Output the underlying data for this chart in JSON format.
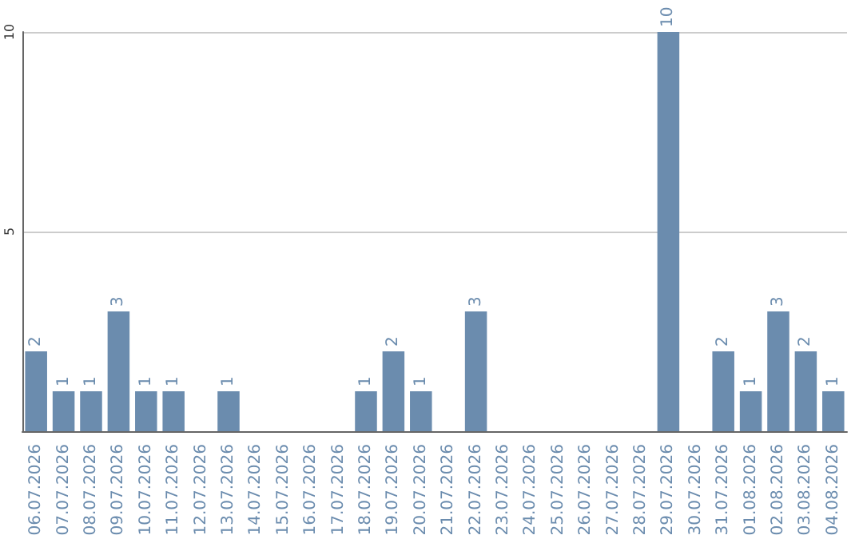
{
  "chart_data": {
    "type": "bar",
    "categories": [
      "06.07.2026",
      "07.07.2026",
      "08.07.2026",
      "09.07.2026",
      "10.07.2026",
      "11.07.2026",
      "12.07.2026",
      "13.07.2026",
      "14.07.2026",
      "15.07.2026",
      "16.07.2026",
      "17.07.2026",
      "18.07.2026",
      "19.07.2026",
      "20.07.2026",
      "21.07.2026",
      "22.07.2026",
      "23.07.2026",
      "24.07.2026",
      "25.07.2026",
      "26.07.2026",
      "27.07.2026",
      "28.07.2026",
      "29.07.2026",
      "30.07.2026",
      "31.07.2026",
      "01.08.2026",
      "02.08.2026",
      "03.08.2026",
      "04.08.2026"
    ],
    "values": [
      2,
      1,
      1,
      3,
      1,
      1,
      0,
      1,
      0,
      0,
      0,
      0,
      1,
      2,
      1,
      0,
      3,
      0,
      0,
      0,
      0,
      0,
      0,
      10,
      0,
      2,
      1,
      3,
      2,
      1
    ],
    "value_labels": [
      "2",
      "1",
      "1",
      "3",
      "1",
      "1",
      null,
      "1",
      null,
      null,
      null,
      null,
      "1",
      "2",
      "1",
      null,
      "3",
      null,
      null,
      null,
      null,
      null,
      null,
      "10",
      null,
      "2",
      "1",
      "3",
      "2",
      "1"
    ],
    "color": "#6b8cae",
    "ylim": [
      0,
      10
    ],
    "yticks": [
      {
        "value": 0,
        "label": null
      },
      5,
      10
    ],
    "grid": "y"
  }
}
